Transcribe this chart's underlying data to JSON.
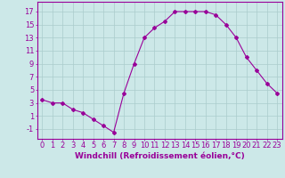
{
  "x": [
    0,
    1,
    2,
    3,
    4,
    5,
    6,
    7,
    8,
    9,
    10,
    11,
    12,
    13,
    14,
    15,
    16,
    17,
    18,
    19,
    20,
    21,
    22,
    23
  ],
  "y": [
    3.5,
    3.0,
    3.0,
    2.0,
    1.5,
    0.5,
    -0.5,
    -1.5,
    4.5,
    9.0,
    13.0,
    14.5,
    15.5,
    17.0,
    17.0,
    17.0,
    17.0,
    16.5,
    15.0,
    13.0,
    10.0,
    8.0,
    6.0,
    4.5
  ],
  "line_color": "#990099",
  "marker": "D",
  "marker_size": 2,
  "bg_color": "#cce8e8",
  "grid_color": "#aacccc",
  "xlabel": "Windchill (Refroidissement éolien,°C)",
  "xlabel_color": "#990099",
  "xlabel_fontsize": 6.5,
  "ytick_labels": [
    "-1",
    "1",
    "3",
    "5",
    "7",
    "9",
    "11",
    "13",
    "15",
    "17"
  ],
  "ytick_values": [
    -1,
    1,
    3,
    5,
    7,
    9,
    11,
    13,
    15,
    17
  ],
  "xtick_values": [
    0,
    1,
    2,
    3,
    4,
    5,
    6,
    7,
    8,
    9,
    10,
    11,
    12,
    13,
    14,
    15,
    16,
    17,
    18,
    19,
    20,
    21,
    22,
    23
  ],
  "xlim": [
    -0.5,
    23.5
  ],
  "ylim": [
    -2.5,
    18.5
  ],
  "tick_fontsize": 6,
  "tick_color": "#990099",
  "spine_color": "#990099"
}
